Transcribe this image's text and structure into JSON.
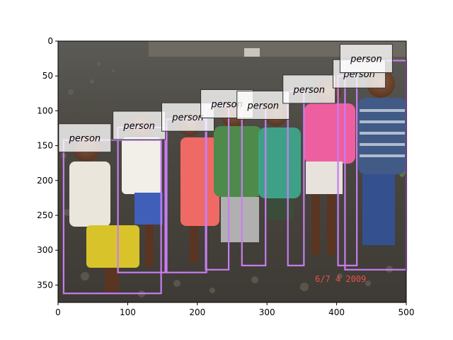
{
  "plot": {
    "xlim": [
      0,
      500
    ],
    "ylim": [
      375,
      0
    ],
    "x_ticks": [
      0,
      100,
      200,
      300,
      400,
      500
    ],
    "y_ticks": [
      0,
      50,
      100,
      150,
      200,
      250,
      300,
      350
    ]
  },
  "photo": {
    "timestamp_text": "6/7  4 2009",
    "timestamp_color": "#e8504a"
  },
  "box_color": "#c77ef0",
  "detections": [
    {
      "label": "person",
      "x1": 8,
      "y1": 142,
      "x2": 148,
      "y2": 362
    },
    {
      "label": "person",
      "x1": 86,
      "y1": 124,
      "x2": 154,
      "y2": 332
    },
    {
      "label": "person",
      "x1": 156,
      "y1": 112,
      "x2": 213,
      "y2": 332
    },
    {
      "label": "person",
      "x1": 212,
      "y1": 93,
      "x2": 245,
      "y2": 328
    },
    {
      "label": "person",
      "x1": 264,
      "y1": 95,
      "x2": 298,
      "y2": 322
    },
    {
      "label": "person",
      "x1": 330,
      "y1": 72,
      "x2": 353,
      "y2": 322
    },
    {
      "label": "person",
      "x1": 402,
      "y1": 50,
      "x2": 429,
      "y2": 322
    },
    {
      "label": "person",
      "x1": 412,
      "y1": 28,
      "x2": 500,
      "y2": 328
    }
  ]
}
